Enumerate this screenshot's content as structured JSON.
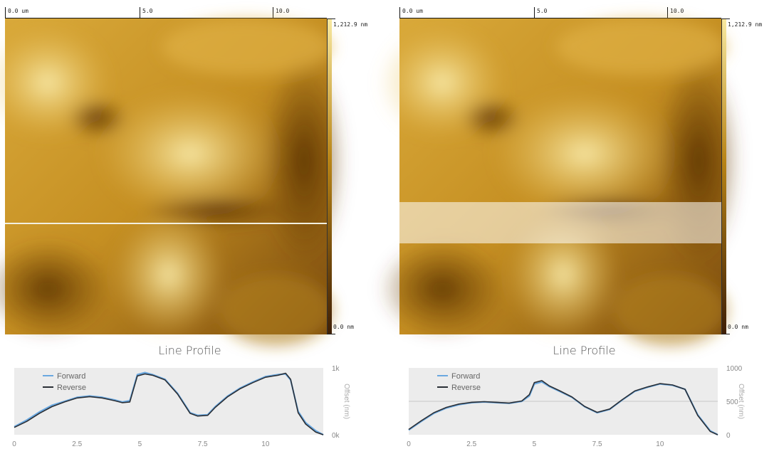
{
  "colors": {
    "afm_dark": "#3f1f05",
    "afm_mid": "#b88416",
    "afm_light": "#f8e9a0",
    "forward": "#6aa8e0",
    "reverse": "#2a2f36",
    "plot_bg": "#ececec"
  },
  "panels": [
    {
      "ruler": [
        "0.0 um",
        "5.0",
        "10.0"
      ],
      "colorbar": {
        "max_label": "1,212.9 nm",
        "min_label": "0.0 nm"
      },
      "selection": "line",
      "profile_title": "Line Profile",
      "chart_data": {
        "type": "line",
        "title": "Line Profile",
        "xlabel": "",
        "ylabel": "Offset (nm)",
        "xlim": [
          0,
          12.3
        ],
        "ylim": [
          0,
          1000
        ],
        "xticks": [
          "0",
          "2.5",
          "5",
          "7.5",
          "10"
        ],
        "xtick_values": [
          0,
          2.5,
          5,
          7.5,
          10
        ],
        "yticks": [
          "0k",
          "1k"
        ],
        "ytick_values": [
          0,
          1000
        ],
        "legend_position": "top-left",
        "series": [
          {
            "name": "Forward",
            "color": "#6aa8e0",
            "x": [
              0,
              0.5,
              1,
              1.5,
              2,
              2.5,
              3,
              3.5,
              4,
              4.3,
              4.6,
              4.9,
              5.2,
              5.5,
              6,
              6.5,
              7,
              7.3,
              7.7,
              8,
              8.5,
              9,
              9.5,
              10,
              10.5,
              10.8,
              11,
              11.3,
              11.6,
              12,
              12.3
            ],
            "y": [
              120,
              220,
              340,
              440,
              500,
              560,
              580,
              560,
              520,
              490,
              510,
              900,
              930,
              900,
              830,
              620,
              330,
              290,
              300,
              420,
              580,
              700,
              790,
              870,
              900,
              910,
              820,
              350,
              180,
              60,
              0
            ]
          },
          {
            "name": "Reverse",
            "color": "#2a2f36",
            "x": [
              0,
              0.5,
              1,
              1.5,
              2,
              2.5,
              3,
              3.5,
              4,
              4.3,
              4.6,
              4.9,
              5.2,
              5.5,
              6,
              6.5,
              7,
              7.3,
              7.7,
              8,
              8.5,
              9,
              9.5,
              10,
              10.5,
              10.8,
              11,
              11.3,
              11.6,
              12,
              12.3
            ],
            "y": [
              110,
              200,
              320,
              420,
              490,
              550,
              570,
              550,
              510,
              480,
              490,
              880,
              910,
              890,
              820,
              610,
              320,
              280,
              290,
              410,
              570,
              690,
              780,
              860,
              890,
              920,
              830,
              330,
              160,
              40,
              0
            ]
          }
        ]
      }
    },
    {
      "ruler": [
        "0.0 um",
        "5.0",
        "10.0"
      ],
      "colorbar": {
        "max_label": "1,212.9 nm",
        "min_label": "0.0 nm"
      },
      "selection": "band",
      "profile_title": "Line Profile",
      "chart_data": {
        "type": "line",
        "title": "Line Profile",
        "xlabel": "",
        "ylabel": "Offset (nm)",
        "xlim": [
          0,
          12.3
        ],
        "ylim": [
          0,
          1000
        ],
        "xticks": [
          "0",
          "2.5",
          "5",
          "7.5",
          "10"
        ],
        "xtick_values": [
          0,
          2.5,
          5,
          7.5,
          10
        ],
        "yticks": [
          "0",
          "500",
          "1000"
        ],
        "ytick_values": [
          0,
          500,
          1000
        ],
        "grid": true,
        "legend_position": "top-left",
        "series": [
          {
            "name": "Forward",
            "color": "#6aa8e0",
            "x": [
              0,
              0.5,
              1,
              1.5,
              2,
              2.5,
              3,
              3.5,
              4,
              4.5,
              4.8,
              5,
              5.3,
              5.6,
              6,
              6.5,
              7,
              7.5,
              8,
              8.5,
              9,
              9.5,
              10,
              10.5,
              11,
              11.5,
              12,
              12.3
            ],
            "y": [
              70,
              200,
              320,
              400,
              450,
              480,
              490,
              480,
              470,
              500,
              580,
              760,
              790,
              720,
              650,
              560,
              420,
              330,
              380,
              520,
              650,
              710,
              760,
              740,
              680,
              300,
              60,
              0
            ]
          },
          {
            "name": "Reverse",
            "color": "#2a2f36",
            "x": [
              0,
              0.5,
              1,
              1.5,
              2,
              2.5,
              3,
              3.5,
              4,
              4.5,
              4.8,
              5,
              5.3,
              5.6,
              6,
              6.5,
              7,
              7.5,
              8,
              8.5,
              9,
              9.5,
              10,
              10.5,
              11,
              11.5,
              12,
              12.3
            ],
            "y": [
              80,
              210,
              330,
              410,
              460,
              485,
              495,
              485,
              475,
              505,
              600,
              780,
              810,
              730,
              660,
              565,
              425,
              335,
              385,
              525,
              655,
              715,
              765,
              745,
              680,
              290,
              50,
              0
            ]
          }
        ]
      }
    }
  ]
}
